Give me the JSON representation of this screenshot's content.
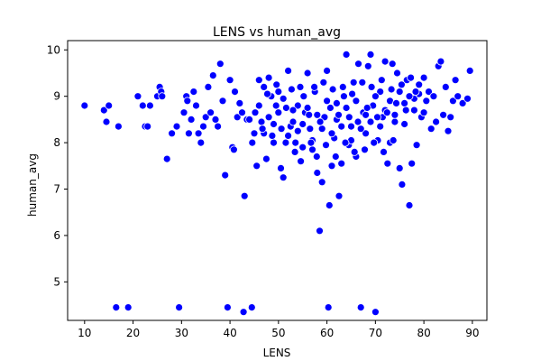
{
  "chart_data": {
    "type": "scatter",
    "title": "LENS vs human_avg",
    "xlabel": "LENS",
    "ylabel": "human_avg",
    "xlim": [
      6.5,
      93
    ],
    "ylim": [
      4.17,
      10.2
    ],
    "xticks": [
      10,
      20,
      30,
      40,
      50,
      60,
      70,
      80,
      90
    ],
    "yticks": [
      5,
      6,
      7,
      8,
      9,
      10
    ],
    "grid": false,
    "legend": "none",
    "marker_color": "#0000ff",
    "marker_edge_color": "#ffffff",
    "points": [
      [
        10,
        8.8
      ],
      [
        14,
        8.7
      ],
      [
        14.5,
        8.45
      ],
      [
        15,
        8.8
      ],
      [
        16.5,
        4.45
      ],
      [
        17,
        8.35
      ],
      [
        19,
        4.45
      ],
      [
        21,
        9.0
      ],
      [
        22,
        8.8
      ],
      [
        22.5,
        8.35
      ],
      [
        23,
        8.35
      ],
      [
        23.5,
        8.8
      ],
      [
        25,
        9.0
      ],
      [
        25.5,
        9.2
      ],
      [
        25.8,
        9.1
      ],
      [
        26,
        9.0
      ],
      [
        27,
        7.65
      ],
      [
        28,
        8.2
      ],
      [
        29,
        8.35
      ],
      [
        29.5,
        4.45
      ],
      [
        30.5,
        8.65
      ],
      [
        31,
        9.0
      ],
      [
        31.2,
        8.9
      ],
      [
        31.5,
        8.2
      ],
      [
        32,
        8.5
      ],
      [
        32.5,
        9.1
      ],
      [
        33,
        8.8
      ],
      [
        33.5,
        8.2
      ],
      [
        34,
        8.0
      ],
      [
        34.5,
        8.35
      ],
      [
        35,
        8.55
      ],
      [
        35.5,
        9.2
      ],
      [
        36,
        8.65
      ],
      [
        36.5,
        9.45
      ],
      [
        37,
        8.5
      ],
      [
        37.5,
        8.35
      ],
      [
        38,
        9.7
      ],
      [
        38.5,
        8.9
      ],
      [
        39,
        7.3
      ],
      [
        39.5,
        4.45
      ],
      [
        40,
        9.35
      ],
      [
        40.5,
        7.9
      ],
      [
        40.8,
        7.85
      ],
      [
        41,
        9.1
      ],
      [
        41.5,
        8.55
      ],
      [
        42,
        8.85
      ],
      [
        42.5,
        8.65
      ],
      [
        43,
        6.85
      ],
      [
        43.5,
        8.5
      ],
      [
        44,
        8.5
      ],
      [
        44.5,
        4.45
      ],
      [
        42.8,
        4.35
      ],
      [
        45,
        8.2
      ],
      [
        45.5,
        7.5
      ],
      [
        46,
        9.35
      ],
      [
        46.5,
        8.45
      ],
      [
        47,
        9.2
      ],
      [
        47.5,
        7.65
      ],
      [
        48,
        9.4
      ],
      [
        48.5,
        9.0
      ],
      [
        49,
        8.0
      ],
      [
        49.5,
        8.8
      ],
      [
        50,
        9.1
      ],
      [
        50.5,
        7.45
      ],
      [
        51,
        7.25
      ],
      [
        51.5,
        8.0
      ],
      [
        52,
        9.55
      ],
      [
        52.5,
        8.35
      ],
      [
        53,
        8.45
      ],
      [
        53.5,
        8.0
      ],
      [
        54,
        8.8
      ],
      [
        54.5,
        9.2
      ],
      [
        55,
        7.9
      ],
      [
        55.5,
        8.65
      ],
      [
        56,
        9.5
      ],
      [
        56.5,
        8.3
      ],
      [
        57,
        7.85
      ],
      [
        57.5,
        9.1
      ],
      [
        58,
        7.35
      ],
      [
        58.5,
        6.1
      ],
      [
        59,
        7.15
      ],
      [
        59.5,
        8.55
      ],
      [
        60,
        9.55
      ],
      [
        60.3,
        4.45
      ],
      [
        60.5,
        6.65
      ],
      [
        61,
        7.5
      ],
      [
        61.5,
        8.1
      ],
      [
        62,
        8.85
      ],
      [
        62.5,
        6.85
      ],
      [
        63,
        7.55
      ],
      [
        63.5,
        9.0
      ],
      [
        64,
        9.9
      ],
      [
        64.5,
        7.95
      ],
      [
        65,
        8.35
      ],
      [
        65.5,
        9.3
      ],
      [
        66,
        7.7
      ],
      [
        66.5,
        9.7
      ],
      [
        67,
        4.45
      ],
      [
        67.5,
        8.65
      ],
      [
        68,
        8.2
      ],
      [
        68.5,
        9.65
      ],
      [
        69,
        9.9
      ],
      [
        69.5,
        8.8
      ],
      [
        70,
        4.35
      ],
      [
        70.5,
        8.05
      ],
      [
        71,
        9.1
      ],
      [
        71.5,
        8.55
      ],
      [
        72,
        9.75
      ],
      [
        72.5,
        7.55
      ],
      [
        73,
        8.0
      ],
      [
        73.5,
        9.7
      ],
      [
        74,
        8.45
      ],
      [
        74.5,
        9.5
      ],
      [
        75,
        7.45
      ],
      [
        75.5,
        7.1
      ],
      [
        76,
        8.85
      ],
      [
        76.5,
        9.35
      ],
      [
        77,
        6.65
      ],
      [
        77.5,
        7.55
      ],
      [
        78,
        8.95
      ],
      [
        78.5,
        7.95
      ],
      [
        79,
        9.25
      ],
      [
        79.5,
        8.55
      ],
      [
        80,
        9.4
      ],
      [
        80.5,
        8.9
      ],
      [
        81,
        9.1
      ],
      [
        81.5,
        8.3
      ],
      [
        82,
        9.0
      ],
      [
        82.5,
        8.45
      ],
      [
        83,
        9.65
      ],
      [
        83.5,
        9.75
      ],
      [
        84,
        8.6
      ],
      [
        84.5,
        9.2
      ],
      [
        85,
        8.25
      ],
      [
        85.5,
        8.55
      ],
      [
        86,
        8.9
      ],
      [
        86.5,
        9.35
      ],
      [
        87,
        9.0
      ],
      [
        88,
        8.85
      ],
      [
        89,
        8.95
      ],
      [
        89.5,
        9.55
      ],
      [
        46,
        8.8
      ],
      [
        47,
        8.2
      ],
      [
        48,
        8.55
      ],
      [
        49,
        8.4
      ],
      [
        50,
        8.65
      ],
      [
        51,
        8.95
      ],
      [
        52,
        8.15
      ],
      [
        53,
        8.7
      ],
      [
        54,
        8.25
      ],
      [
        55,
        8.4
      ],
      [
        56,
        8.75
      ],
      [
        57,
        8.05
      ],
      [
        58,
        8.6
      ],
      [
        59,
        8.3
      ],
      [
        60,
        8.9
      ],
      [
        61,
        8.2
      ],
      [
        62,
        8.5
      ],
      [
        63,
        8.35
      ],
      [
        64,
        8.75
      ],
      [
        65,
        8.05
      ],
      [
        66,
        8.9
      ],
      [
        67,
        8.3
      ],
      [
        68,
        8.6
      ],
      [
        69,
        8.45
      ],
      [
        70,
        9.0
      ],
      [
        71,
        8.35
      ],
      [
        72,
        8.7
      ],
      [
        73,
        8.9
      ],
      [
        74,
        8.6
      ],
      [
        75,
        9.1
      ],
      [
        76,
        8.4
      ],
      [
        77,
        9.0
      ],
      [
        78,
        8.7
      ],
      [
        79,
        9.05
      ],
      [
        80,
        8.65
      ],
      [
        55.2,
        9.0
      ],
      [
        56.3,
        8.6
      ],
      [
        57.4,
        9.2
      ],
      [
        58.6,
        8.45
      ],
      [
        59.3,
        9.3
      ],
      [
        60.7,
        8.75
      ],
      [
        61.2,
        9.15
      ],
      [
        62.4,
        8.6
      ],
      [
        63.3,
        9.2
      ],
      [
        64.6,
        8.55
      ],
      [
        65.2,
        9.05
      ],
      [
        66.4,
        8.45
      ],
      [
        67.3,
        9.3
      ],
      [
        68.3,
        8.75
      ],
      [
        69.2,
        9.2
      ],
      [
        70.4,
        8.55
      ],
      [
        71.3,
        9.35
      ],
      [
        72.4,
        8.65
      ],
      [
        73.3,
        9.15
      ],
      [
        74.3,
        8.85
      ],
      [
        75.4,
        9.25
      ],
      [
        76.3,
        8.7
      ],
      [
        77.3,
        9.4
      ],
      [
        78.3,
        9.1
      ],
      [
        53.4,
        7.8
      ],
      [
        54.6,
        7.6
      ],
      [
        56.7,
        8.0
      ],
      [
        57.9,
        7.7
      ],
      [
        59.8,
        7.95
      ],
      [
        61.8,
        7.7
      ],
      [
        63.8,
        8.0
      ],
      [
        65.7,
        7.8
      ],
      [
        67.8,
        7.85
      ],
      [
        69.7,
        8.0
      ],
      [
        71.7,
        7.8
      ],
      [
        73.7,
        8.05
      ],
      [
        44.6,
        8.0
      ],
      [
        45.2,
        8.65
      ],
      [
        46.7,
        8.3
      ],
      [
        47.7,
        9.05
      ],
      [
        48.7,
        8.15
      ],
      [
        49.6,
        9.25
      ],
      [
        50.6,
        8.3
      ],
      [
        51.6,
        8.75
      ],
      [
        52.7,
        9.15
      ]
    ]
  }
}
